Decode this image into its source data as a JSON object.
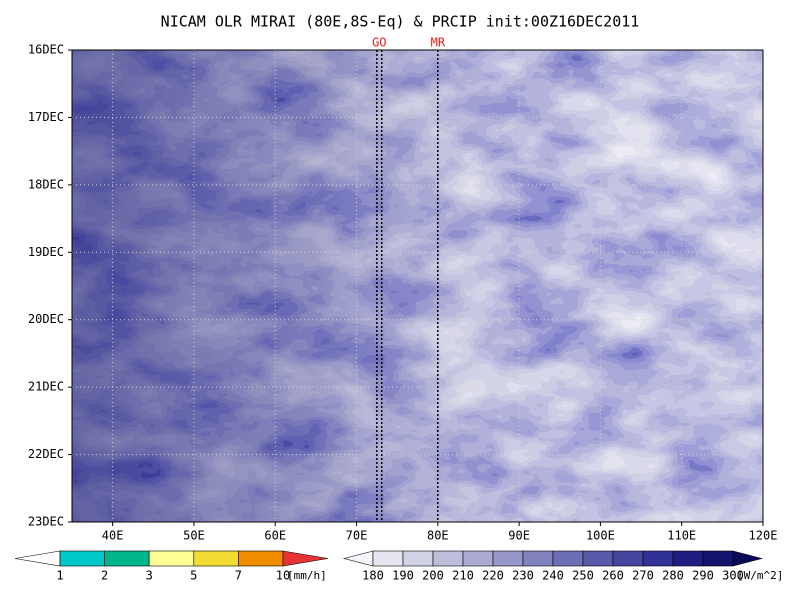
{
  "chart_data": {
    "type": "heatmap",
    "title": "NICAM OLR MIRAI (80E,8S-Eq) & PRCIP init:00Z16DEC2011",
    "xlim": [
      35,
      120
    ],
    "xticks": [
      {
        "value": 40,
        "label": "40E"
      },
      {
        "value": 50,
        "label": "50E"
      },
      {
        "value": 60,
        "label": "60E"
      },
      {
        "value": 70,
        "label": "70E"
      },
      {
        "value": 80,
        "label": "80E"
      },
      {
        "value": 90,
        "label": "90E"
      },
      {
        "value": 100,
        "label": "100E"
      },
      {
        "value": 110,
        "label": "110E"
      },
      {
        "value": 120,
        "label": "120E"
      }
    ],
    "ylim": [
      16,
      23
    ],
    "yticks": [
      {
        "value": 16,
        "label": "16DEC"
      },
      {
        "value": 17,
        "label": "17DEC"
      },
      {
        "value": 18,
        "label": "18DEC"
      },
      {
        "value": 19,
        "label": "19DEC"
      },
      {
        "value": 20,
        "label": "20DEC"
      },
      {
        "value": 21,
        "label": "21DEC"
      },
      {
        "value": 22,
        "label": "22DEC"
      },
      {
        "value": 23,
        "label": "23DEC"
      }
    ],
    "grid": true,
    "markers": [
      {
        "label": "GO",
        "x": [
          72.5,
          73.1
        ],
        "color": "#e02020"
      },
      {
        "label": "MR",
        "x": [
          80
        ],
        "color": "#e02020"
      }
    ],
    "colorbars": [
      {
        "levels": [
          1,
          2,
          3,
          5,
          7,
          10
        ],
        "unit": "[mm/h]",
        "colors": [
          "#ffffff",
          "#00c8c8",
          "#00b48c",
          "#ffff96",
          "#f0dc32",
          "#f08c00",
          "#e63232"
        ]
      },
      {
        "levels": [
          180,
          190,
          200,
          210,
          220,
          230,
          240,
          250,
          260,
          270,
          280,
          290,
          300
        ],
        "unit": "[W/m^2]",
        "colors": [
          "#f5f5fa",
          "#e6e6f0",
          "#d2d2e6",
          "#bebedc",
          "#aaaad2",
          "#9696c8",
          "#8282be",
          "#6e6eb4",
          "#5a5aaa",
          "#4646a0",
          "#323296",
          "#1e1e82",
          "#14146e",
          "#0a0a5a"
        ]
      }
    ]
  }
}
